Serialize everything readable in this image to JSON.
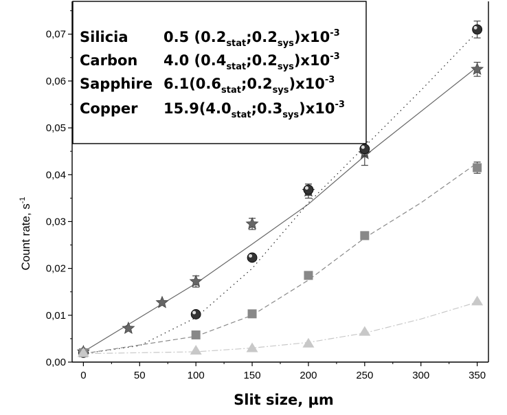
{
  "chart_data": {
    "type": "scatter",
    "xlabel": "Slit size, µm",
    "ylabel": "Count rate, s",
    "ylabel_sup": "-1",
    "xlim": [
      -10,
      360
    ],
    "ylim": [
      0,
      0.077
    ],
    "x_ticks": [
      0,
      50,
      100,
      150,
      200,
      250,
      300,
      350
    ],
    "x_tick_labels": [
      "0",
      "50",
      "100",
      "150",
      "200",
      "250",
      "300",
      "350"
    ],
    "y_ticks": [
      0,
      0.01,
      0.02,
      0.03,
      0.04,
      0.05,
      0.06,
      0.07
    ],
    "y_tick_labels": [
      "0,00",
      "0,01",
      "0,02",
      "0,03",
      "0,04",
      "0,05",
      "0,06",
      "0,07"
    ],
    "grid": false,
    "legend_box": {
      "placement": "top-left",
      "rows": [
        {
          "material": "Silicia",
          "prefix": "0.5 (0.2",
          "stat": "stat",
          "mid": ";0.2",
          "sys": "sys",
          "suffix": ")x10",
          "exp": "-3"
        },
        {
          "material": "Carbon",
          "prefix": "4.0 (0.4",
          "stat": "stat",
          "mid": ";0.2",
          "sys": "sys",
          "suffix": ")x10",
          "exp": "-3"
        },
        {
          "material": "Sapphire",
          "prefix": "6.1(0.6",
          "stat": "stat",
          "mid": ";0.2",
          "sys": "sys",
          "suffix": ")x10",
          "exp": "-3"
        },
        {
          "material": "Copper",
          "prefix": "15.9(4.0",
          "stat": "stat",
          "mid": ";0.3",
          "sys": "sys",
          "suffix": ")x10",
          "exp": "-3"
        }
      ]
    },
    "series": [
      {
        "marker": "star",
        "color": "#666666",
        "line": "solid",
        "points": [
          {
            "x": 0,
            "y": 0.0022,
            "err": 0
          },
          {
            "x": 40,
            "y": 0.0072,
            "err": 0
          },
          {
            "x": 70,
            "y": 0.0127,
            "err": 0
          },
          {
            "x": 100,
            "y": 0.0172,
            "err": 0.0012
          },
          {
            "x": 150,
            "y": 0.0295,
            "err": 0.0012
          },
          {
            "x": 200,
            "y": 0.0365,
            "err": 0.0015
          },
          {
            "x": 250,
            "y": 0.0445,
            "err": 0.0025
          },
          {
            "x": 350,
            "y": 0.0625,
            "err": 0.0015
          }
        ],
        "fit": [
          [
            0,
            0.0022
          ],
          [
            100,
            0.0168
          ],
          [
            150,
            0.0252
          ],
          [
            200,
            0.0337
          ],
          [
            250,
            0.044
          ],
          [
            350,
            0.063
          ]
        ]
      },
      {
        "marker": "sphere",
        "color": "#333333",
        "line": "dotted",
        "points": [
          {
            "x": 0,
            "y": 0.002,
            "err": 0
          },
          {
            "x": 100,
            "y": 0.0102,
            "err": 0
          },
          {
            "x": 150,
            "y": 0.0223,
            "err": 0
          },
          {
            "x": 200,
            "y": 0.0368,
            "err": 0.0012
          },
          {
            "x": 250,
            "y": 0.0455,
            "err": 0.0015
          },
          {
            "x": 350,
            "y": 0.071,
            "err": 0.0018
          }
        ],
        "fit": [
          [
            0,
            0.0018
          ],
          [
            50,
            0.0035
          ],
          [
            100,
            0.0095
          ],
          [
            150,
            0.02
          ],
          [
            200,
            0.034
          ],
          [
            250,
            0.046
          ],
          [
            300,
            0.058
          ],
          [
            350,
            0.0705
          ]
        ]
      },
      {
        "marker": "square",
        "color": "#888888",
        "line": "dashed",
        "points": [
          {
            "x": 0,
            "y": 0.002,
            "err": 0
          },
          {
            "x": 100,
            "y": 0.0058,
            "err": 0
          },
          {
            "x": 150,
            "y": 0.0103,
            "err": 0
          },
          {
            "x": 200,
            "y": 0.0185,
            "err": 0
          },
          {
            "x": 250,
            "y": 0.027,
            "err": 0
          },
          {
            "x": 350,
            "y": 0.0415,
            "err": 0.0012
          }
        ],
        "fit": [
          [
            0,
            0.0018
          ],
          [
            100,
            0.0055
          ],
          [
            150,
            0.01
          ],
          [
            200,
            0.0175
          ],
          [
            250,
            0.0265
          ],
          [
            300,
            0.034
          ],
          [
            350,
            0.0425
          ]
        ]
      },
      {
        "marker": "triangle",
        "color": "#c8c8c8",
        "line": "dashdot",
        "points": [
          {
            "x": 0,
            "y": 0.002,
            "err": 0
          },
          {
            "x": 100,
            "y": 0.0025,
            "err": 0
          },
          {
            "x": 150,
            "y": 0.003,
            "err": 0
          },
          {
            "x": 200,
            "y": 0.004,
            "err": 0
          },
          {
            "x": 250,
            "y": 0.0065,
            "err": 0
          },
          {
            "x": 350,
            "y": 0.013,
            "err": 0
          }
        ],
        "fit": [
          [
            0,
            0.0018
          ],
          [
            100,
            0.0022
          ],
          [
            150,
            0.003
          ],
          [
            200,
            0.0042
          ],
          [
            250,
            0.0062
          ],
          [
            300,
            0.0092
          ],
          [
            350,
            0.0128
          ]
        ]
      }
    ]
  }
}
